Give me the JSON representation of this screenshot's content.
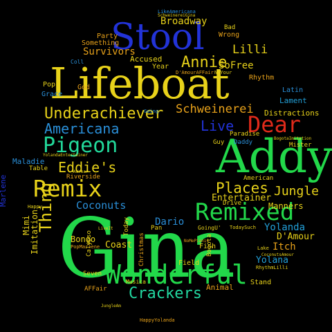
{
  "words": [
    {
      "text": "Lifeboat",
      "color": "#e8d21a"
    },
    {
      "text": "Gina",
      "color": "#22d84a"
    },
    {
      "text": "Stool",
      "color": "#2233d8"
    },
    {
      "text": "Addy",
      "color": "#22d84a"
    },
    {
      "text": "Wonderful",
      "color": "#22d84a"
    },
    {
      "text": "Remixed",
      "color": "#22d84a"
    },
    {
      "text": "Remix",
      "color": "#e8d21a"
    },
    {
      "text": "Pigeon",
      "color": "#22d89a"
    },
    {
      "text": "Dear",
      "color": "#e02a1a"
    },
    {
      "text": "Underachiever",
      "color": "#e8d21a"
    },
    {
      "text": "Americana",
      "color": "#2a8fd8"
    },
    {
      "text": "Eddie's",
      "color": "#e8d21a"
    },
    {
      "text": "Crackers",
      "color": "#22d8a0"
    },
    {
      "text": "Annie",
      "color": "#e8d21a"
    },
    {
      "text": "Places",
      "color": "#e8d21a"
    },
    {
      "text": "Jungle",
      "color": "#e8d21a"
    },
    {
      "text": "Schweinerei",
      "color": "#e8a21a"
    },
    {
      "text": "Thing",
      "color": "#e8d21a"
    },
    {
      "text": "Coconuts",
      "color": "#2a8fd8"
    },
    {
      "text": "Live",
      "color": "#2233d8"
    },
    {
      "text": "Lilli",
      "color": "#e8d21a"
    },
    {
      "text": "Broadway",
      "color": "#e8d21a"
    },
    {
      "text": "Survivors",
      "color": "#e8a21a"
    },
    {
      "text": "SoFree",
      "color": "#e8d21a"
    },
    {
      "text": "Yolanda",
      "color": "#22a0d8"
    },
    {
      "text": "Entertainer",
      "color": "#e8d21a"
    },
    {
      "text": "Dario",
      "color": "#2a8fd8"
    },
    {
      "text": "Itch",
      "color": "#e8a21a"
    },
    {
      "text": "Yolana",
      "color": "#22a0d8"
    },
    {
      "text": "D'Amour",
      "color": "#e8d21a"
    },
    {
      "text": "Manners",
      "color": "#e8d21a"
    },
    {
      "text": "Coast",
      "color": "#e8d21a"
    },
    {
      "text": "Bongo",
      "color": "#e8d21a"
    },
    {
      "text": "Imitation",
      "color": "#e8d21a"
    },
    {
      "text": "Mimi",
      "color": "#e8d21a"
    },
    {
      "text": "Maladie",
      "color": "#2a8fd8"
    },
    {
      "text": "Marlene",
      "color": "#2233d8"
    },
    {
      "text": "Distractions",
      "color": "#e8d21a"
    },
    {
      "text": "Lament",
      "color": "#22a0d8"
    },
    {
      "text": "Latin",
      "color": "#2a8fd8"
    },
    {
      "text": "Accused",
      "color": "#e8d21a"
    },
    {
      "text": "Year",
      "color": "#e8d21a"
    },
    {
      "text": "Party",
      "color": "#e8a21a"
    },
    {
      "text": "Something",
      "color": "#e8a21a"
    },
    {
      "text": "Wrong",
      "color": "#e8a21a"
    },
    {
      "text": "Bad",
      "color": "#e8d21a"
    },
    {
      "text": "Rhythm",
      "color": "#e8a21a"
    },
    {
      "text": "Grace",
      "color": "#2a8fd8"
    },
    {
      "text": "Pop",
      "color": "#e8d21a"
    },
    {
      "text": "God",
      "color": "#e8a21a"
    },
    {
      "text": "Table",
      "color": "#e8d21a"
    },
    {
      "text": "Riverside",
      "color": "#e8a21a"
    },
    {
      "text": "American",
      "color": "#e8d21a"
    },
    {
      "text": "Guy",
      "color": "#e8d21a"
    },
    {
      "text": "Daddy",
      "color": "#2a8fd8"
    },
    {
      "text": "Paradise",
      "color": "#e8d21a"
    },
    {
      "text": "Mister",
      "color": "#e8d21a"
    },
    {
      "text": "Drive",
      "color": "#e8d21a"
    },
    {
      "text": "Pan",
      "color": "#e8d21a"
    },
    {
      "text": "Today",
      "color": "#e8d21a"
    },
    {
      "text": "Calypso",
      "color": "#e8d21a"
    },
    {
      "text": "Christmas",
      "color": "#e8a21a"
    },
    {
      "text": "Fish",
      "color": "#e8d21a"
    },
    {
      "text": "Bogota",
      "color": "#e8d21a"
    },
    {
      "text": "Field",
      "color": "#e8d21a"
    },
    {
      "text": "Stand",
      "color": "#e8d21a"
    },
    {
      "text": "Animal",
      "color": "#e8a21a"
    },
    {
      "text": "Seven",
      "color": "#e8d21a"
    },
    {
      "text": "AFFair",
      "color": "#e8a21a"
    },
    {
      "text": "Musica",
      "color": "#e8d21a"
    },
    {
      "text": "Coll",
      "color": "#2a8fd8"
    },
    {
      "text": "Happy",
      "color": "#e8d21a"
    },
    {
      "text": "Lake",
      "color": "#e8d21a"
    },
    {
      "text": "GoingU'",
      "color": "#e8d21a"
    },
    {
      "text": "Going",
      "color": "#2a8fd8"
    },
    {
      "text": "LikeAmericana",
      "color": "#2a8fd8"
    },
    {
      "text": "PopMarlene",
      "color": "#e8a21a"
    },
    {
      "text": "RhythmLilli",
      "color": "#e8d21a"
    },
    {
      "text": "HappyYolanda",
      "color": "#e8a21a"
    },
    {
      "text": "TodaySuch",
      "color": "#e8d21a"
    },
    {
      "text": "AmYear",
      "color": "#e8d21a"
    },
    {
      "text": "LiveIt",
      "color": "#e8d21a"
    },
    {
      "text": "BogotaImitation",
      "color": "#e8d21a"
    },
    {
      "text": "YolandaEntertainer",
      "color": "#e8d21a"
    },
    {
      "text": "NoMePianis",
      "color": "#e8a21a"
    },
    {
      "text": "CoconutsAmour",
      "color": "#e8d21a"
    },
    {
      "text": "SchweinereiGina",
      "color": "#e8d21a"
    },
    {
      "text": "JungleAm",
      "color": "#e8d21a"
    },
    {
      "text": "D'AmourAFFair",
      "color": "#e8a21a"
    },
    {
      "text": "NoYour",
      "color": "#e8d21a"
    }
  ]
}
